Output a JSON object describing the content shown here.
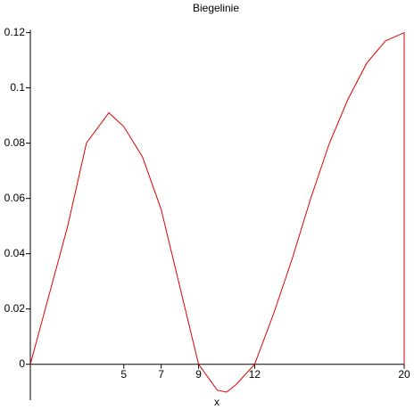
{
  "chart_data": {
    "type": "line",
    "title": "Biegelinie",
    "x_label": "x",
    "x": [
      0,
      1,
      2,
      3,
      4.2,
      5,
      6,
      7,
      8,
      9,
      10,
      10.5,
      11,
      12,
      13,
      14,
      15,
      16,
      17,
      18,
      19,
      20,
      20
    ],
    "series": [
      {
        "name": "Biegelinie",
        "color": "#e00000",
        "values": [
          0,
          0.025,
          0.05,
          0.08,
          0.091,
          0.086,
          0.075,
          0.056,
          0.028,
          0,
          -0.0094,
          -0.0101,
          -0.0074,
          0,
          0.018,
          0.038,
          0.06,
          0.08,
          0.096,
          0.109,
          0.117,
          0.12,
          0
        ]
      }
    ],
    "xlim": [
      0,
      20
    ],
    "ylim": [
      -0.013,
      0.121
    ],
    "xticks": [
      5,
      7,
      9,
      12,
      20
    ],
    "yticks": [
      0,
      0.02,
      0.04,
      0.06,
      0.08,
      0.1,
      0.12
    ]
  }
}
